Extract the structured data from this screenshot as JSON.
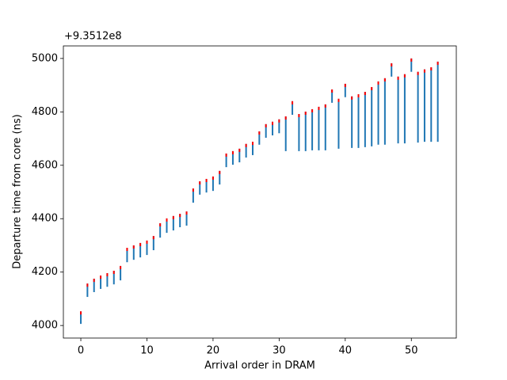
{
  "chart_data": {
    "type": "vlines",
    "y_offset_label": "+9.3512e8",
    "x_label": "Arrival order in DRAM",
    "y_label": "Departure time from core (ns)",
    "x": [
      0,
      1,
      2,
      3,
      4,
      5,
      6,
      7,
      8,
      9,
      10,
      11,
      12,
      13,
      14,
      15,
      16,
      17,
      18,
      19,
      20,
      21,
      22,
      23,
      24,
      25,
      26,
      27,
      28,
      29,
      30,
      31,
      32,
      33,
      34,
      35,
      36,
      37,
      38,
      39,
      40,
      41,
      42,
      43,
      44,
      45,
      46,
      47,
      48,
      49,
      50,
      51,
      52,
      53,
      54
    ],
    "low": [
      4006,
      4107,
      4125,
      4137,
      4145,
      4154,
      4169,
      4237,
      4246,
      4255,
      4264,
      4282,
      4329,
      4347,
      4356,
      4368,
      4374,
      4460,
      4490,
      4498,
      4504,
      4528,
      4593,
      4602,
      4611,
      4629,
      4638,
      4677,
      4703,
      4712,
      4720,
      4653,
      4789,
      4653,
      4653,
      4656,
      4656,
      4656,
      4834,
      4662,
      4855,
      4665,
      4665,
      4668,
      4671,
      4677,
      4677,
      4932,
      4682,
      4682,
      4950,
      4685,
      4688,
      4688,
      4688
    ],
    "high": [
      4053,
      4157,
      4175,
      4187,
      4196,
      4205,
      4223,
      4291,
      4300,
      4309,
      4318,
      4335,
      4383,
      4401,
      4410,
      4418,
      4427,
      4513,
      4540,
      4549,
      4558,
      4579,
      4644,
      4653,
      4662,
      4680,
      4688,
      4727,
      4754,
      4763,
      4772,
      4783,
      4840,
      4792,
      4801,
      4810,
      4819,
      4828,
      4884,
      4849,
      4905,
      4858,
      4866,
      4875,
      4893,
      4914,
      4926,
      4982,
      4932,
      4941,
      5000,
      4950,
      4959,
      4967,
      4988
    ],
    "line_color": "#1f77b4",
    "marker_color": "#ff0000",
    "xlim": [
      -2.64,
      56.8
    ],
    "ylim": [
      3953,
      5047
    ],
    "xticks": [
      0,
      10,
      20,
      30,
      40,
      50
    ],
    "yticks": [
      4000,
      4200,
      4400,
      4600,
      4800,
      5000
    ]
  }
}
